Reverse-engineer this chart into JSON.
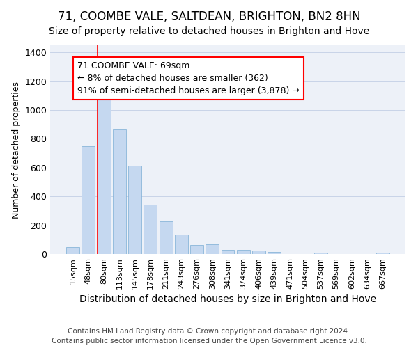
{
  "title": "71, COOMBE VALE, SALTDEAN, BRIGHTON, BN2 8HN",
  "subtitle": "Size of property relative to detached houses in Brighton and Hove",
  "xlabel": "Distribution of detached houses by size in Brighton and Hove",
  "ylabel": "Number of detached properties",
  "footer": "Contains HM Land Registry data © Crown copyright and database right 2024.\nContains public sector information licensed under the Open Government Licence v3.0.",
  "categories": [
    "15sqm",
    "48sqm",
    "80sqm",
    "113sqm",
    "145sqm",
    "178sqm",
    "211sqm",
    "243sqm",
    "276sqm",
    "308sqm",
    "341sqm",
    "374sqm",
    "406sqm",
    "439sqm",
    "471sqm",
    "504sqm",
    "537sqm",
    "569sqm",
    "602sqm",
    "634sqm",
    "667sqm"
  ],
  "bar_heights": [
    50,
    750,
    1100,
    865,
    615,
    345,
    225,
    135,
    65,
    70,
    30,
    30,
    22,
    15,
    0,
    0,
    12,
    0,
    0,
    0,
    12
  ],
  "bar_color": "#c5d8f0",
  "bar_edgecolor": "#7aadd4",
  "grid_color": "#c8d4e8",
  "background_color": "#edf1f8",
  "red_line_x": 1.575,
  "annotation_box_text": "71 COOMBE VALE: 69sqm\n← 8% of detached houses are smaller (362)\n91% of semi-detached houses are larger (3,878) →",
  "ylim": [
    0,
    1450
  ],
  "yticks": [
    0,
    200,
    400,
    600,
    800,
    1000,
    1200,
    1400
  ],
  "title_fontsize": 12,
  "subtitle_fontsize": 10,
  "ylabel_fontsize": 9,
  "xlabel_fontsize": 10,
  "annotation_fontsize": 9,
  "footer_fontsize": 7.5
}
